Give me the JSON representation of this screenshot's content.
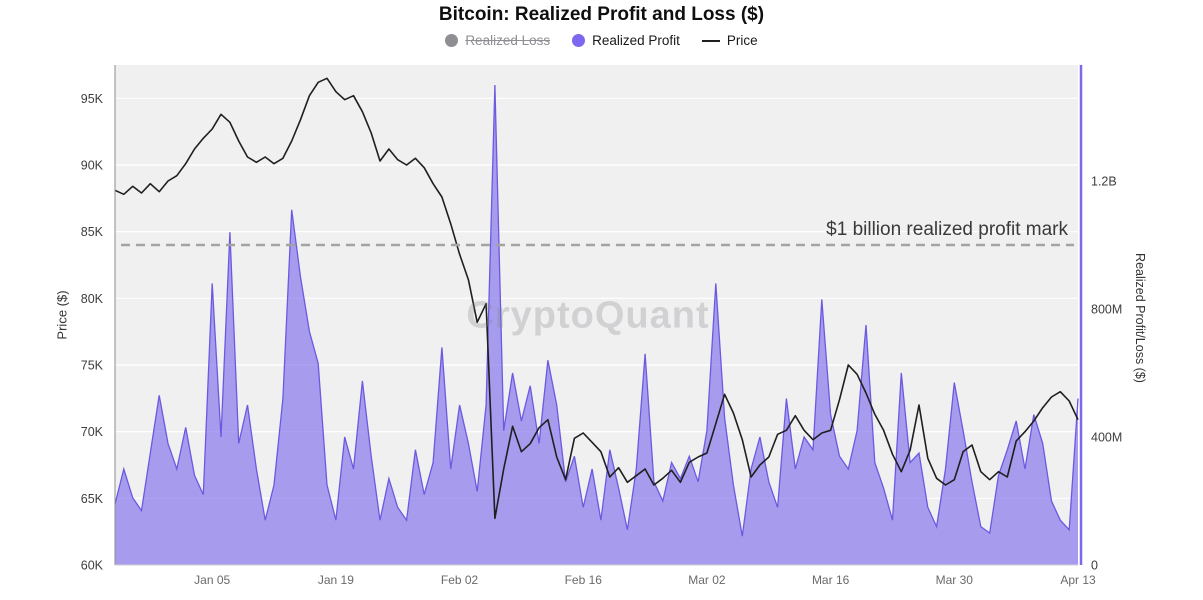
{
  "title": "Bitcoin: Realized Profit and Loss ($)",
  "watermark": "CryptoQuant",
  "legend": {
    "realized_loss": "Realized Loss",
    "realized_profit": "Realized Profit",
    "price": "Price"
  },
  "colors": {
    "profit": "#7b68ee",
    "profit_edge": "#6a5ae0",
    "loss": "#8e8e93",
    "price": "#1f1f1f",
    "dashed": "#a3a3a3",
    "plot_bg": "#f0f0f0",
    "grid": "#ffffff",
    "right_axis": "#7b68ee"
  },
  "chart_data": {
    "type": "area+line",
    "x_ticks": [
      {
        "i": 11,
        "label": "Jan 05"
      },
      {
        "i": 25,
        "label": "Jan 19"
      },
      {
        "i": 39,
        "label": "Feb 02"
      },
      {
        "i": 53,
        "label": "Feb 16"
      },
      {
        "i": 67,
        "label": "Mar 02"
      },
      {
        "i": 81,
        "label": "Mar 16"
      },
      {
        "i": 95,
        "label": "Mar 30"
      },
      {
        "i": 109,
        "label": "Apr 13"
      }
    ],
    "price_axis": {
      "label": "Price ($)",
      "min": 60,
      "max": 97.5,
      "unit": "K",
      "ticks": [
        {
          "v": 60,
          "label": "60K"
        },
        {
          "v": 65,
          "label": "65K"
        },
        {
          "v": 70,
          "label": "70K"
        },
        {
          "v": 75,
          "label": "75K"
        },
        {
          "v": 80,
          "label": "80K"
        },
        {
          "v": 85,
          "label": "85K"
        },
        {
          "v": 90,
          "label": "90K"
        },
        {
          "v": 95,
          "label": "95K"
        }
      ]
    },
    "profit_axis": {
      "label": "Realized Profit/Loss ($)",
      "min": 0,
      "max": 1562.5,
      "unit": "M",
      "ticks": [
        {
          "v": 0,
          "label": "0"
        },
        {
          "v": 400,
          "label": "400M"
        },
        {
          "v": 800,
          "label": "800M"
        },
        {
          "v": 1200,
          "label": "1.2B"
        }
      ]
    },
    "annotation": {
      "text": "$1 billion realized profit mark",
      "value": 1000
    },
    "disabled_series": [
      "Realized Loss"
    ],
    "series": [
      {
        "name": "Realized Profit",
        "axis": "profit",
        "unit": "M",
        "values": [
          190,
          300,
          210,
          170,
          350,
          530,
          380,
          300,
          430,
          280,
          220,
          880,
          400,
          1040,
          380,
          500,
          300,
          140,
          250,
          520,
          1110,
          900,
          730,
          630,
          250,
          140,
          400,
          300,
          575,
          340,
          140,
          270,
          180,
          140,
          360,
          220,
          320,
          680,
          300,
          500,
          380,
          230,
          500,
          1500,
          420,
          600,
          450,
          560,
          380,
          640,
          500,
          260,
          340,
          180,
          300,
          140,
          360,
          240,
          110,
          300,
          660,
          260,
          200,
          320,
          270,
          340,
          260,
          420,
          880,
          460,
          250,
          90,
          300,
          400,
          260,
          180,
          520,
          300,
          400,
          360,
          830,
          470,
          340,
          300,
          420,
          750,
          320,
          240,
          140,
          600,
          320,
          350,
          180,
          120,
          300,
          570,
          420,
          260,
          120,
          100,
          280,
          360,
          450,
          300,
          470,
          380,
          200,
          140,
          110,
          520
        ]
      },
      {
        "name": "Price",
        "axis": "price",
        "unit": "K",
        "values": [
          88.1,
          87.8,
          88.4,
          87.9,
          88.6,
          88.0,
          88.8,
          89.2,
          90.1,
          91.2,
          92.0,
          92.7,
          93.8,
          93.2,
          91.8,
          90.6,
          90.2,
          90.6,
          90.1,
          90.5,
          91.8,
          93.4,
          95.2,
          96.2,
          96.5,
          95.5,
          94.9,
          95.2,
          94.0,
          92.4,
          90.3,
          91.2,
          90.4,
          90.0,
          90.5,
          89.8,
          88.6,
          87.6,
          85.6,
          83.3,
          81.4,
          78.2,
          79.6,
          63.5,
          67.2,
          70.4,
          68.5,
          69.1,
          70.3,
          70.9,
          68.1,
          66.4,
          69.5,
          69.9,
          69.2,
          68.5,
          66.6,
          67.3,
          66.2,
          66.7,
          67.2,
          66.0,
          66.5,
          67.1,
          66.2,
          67.7,
          68.1,
          68.4,
          70.6,
          72.8,
          71.4,
          69.4,
          66.6,
          67.5,
          68.1,
          69.8,
          70.1,
          71.2,
          70.1,
          69.4,
          69.9,
          70.1,
          72.4,
          75.0,
          74.3,
          72.9,
          71.3,
          70.1,
          68.3,
          67.0,
          68.6,
          72.0,
          68.0,
          66.5,
          66.0,
          66.4,
          68.5,
          69.0,
          67.0,
          66.4,
          67.0,
          66.6,
          69.3,
          70.0,
          70.8,
          71.8,
          72.6,
          73.0,
          72.3,
          70.9
        ]
      }
    ]
  }
}
